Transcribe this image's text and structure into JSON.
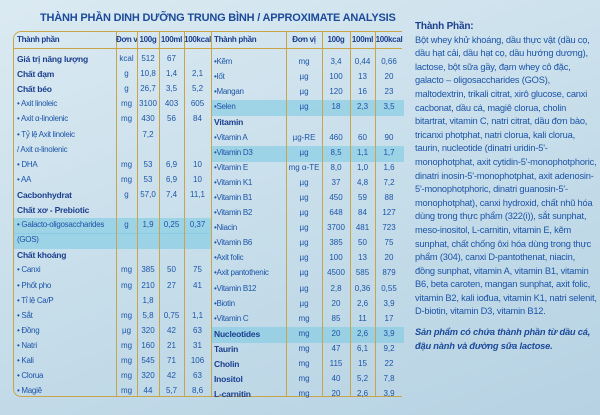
{
  "title": "THÀNH PHẦN DINH DƯỠNG TRUNG BÌNH / APPROXIMATE ANALYSIS",
  "headers": [
    "Thành phần",
    "Đơn vị",
    "100g",
    "100ml",
    "100kcal"
  ],
  "left_rows": [
    {
      "name": "Giá trị năng lượng",
      "bold": true,
      "unit": "kcal",
      "g": "512",
      "ml": "67",
      "kcal": ""
    },
    {
      "name": "Chất đạm",
      "bold": true,
      "unit": "g",
      "g": "10,8",
      "ml": "1,4",
      "kcal": "2,1"
    },
    {
      "name": "Chất béo",
      "bold": true,
      "unit": "g",
      "g": "26,7",
      "ml": "3,5",
      "kcal": "5,2"
    },
    {
      "name": "• Axit linoleic",
      "unit": "mg",
      "g": "3100",
      "ml": "403",
      "kcal": "605"
    },
    {
      "name": "• Axit α-linolenic",
      "unit": "mg",
      "g": "430",
      "ml": "56",
      "kcal": "84"
    },
    {
      "name": "• Tỷ lệ Axit linoleic",
      "unit": "",
      "g": "7,2",
      "ml": "",
      "kcal": ""
    },
    {
      "name": "  / Axit α-linolenic",
      "unit": "",
      "g": "",
      "ml": "",
      "kcal": ""
    },
    {
      "name": "• DHA",
      "unit": "mg",
      "g": "53",
      "ml": "6,9",
      "kcal": "10"
    },
    {
      "name": "• AA",
      "unit": "mg",
      "g": "53",
      "ml": "6,9",
      "kcal": "10"
    },
    {
      "name": "Cacbonhydrat",
      "bold": true,
      "unit": "g",
      "g": "57,0",
      "ml": "7,4",
      "kcal": "11,1"
    },
    {
      "name": "Chất xơ - Prebiotic",
      "bold": true,
      "unit": "",
      "g": "",
      "ml": "",
      "kcal": ""
    },
    {
      "name": "• Galacto-oligosaccharides",
      "highlight": true,
      "unit": "g",
      "g": "1,9",
      "ml": "0,25",
      "kcal": "0,37"
    },
    {
      "name": "(GOS)",
      "highlight": true,
      "unit": "",
      "g": "",
      "ml": "",
      "kcal": ""
    },
    {
      "name": "Chất khoáng",
      "bold": true,
      "unit": "",
      "g": "",
      "ml": "",
      "kcal": ""
    },
    {
      "name": "• Canxi",
      "unit": "mg",
      "g": "385",
      "ml": "50",
      "kcal": "75"
    },
    {
      "name": "• Phốt pho",
      "unit": "mg",
      "g": "210",
      "ml": "27",
      "kcal": "41"
    },
    {
      "name": "• Tỉ lệ Ca/P",
      "unit": "",
      "g": "1,8",
      "ml": "",
      "kcal": ""
    },
    {
      "name": "• Sắt",
      "unit": "mg",
      "g": "5,8",
      "ml": "0,75",
      "kcal": "1,1"
    },
    {
      "name": "• Đồng",
      "unit": "µg",
      "g": "320",
      "ml": "42",
      "kcal": "63"
    },
    {
      "name": "• Natri",
      "unit": "mg",
      "g": "160",
      "ml": "21",
      "kcal": "31"
    },
    {
      "name": "• Kali",
      "unit": "mg",
      "g": "545",
      "ml": "71",
      "kcal": "106"
    },
    {
      "name": "• Clorua",
      "unit": "mg",
      "g": "320",
      "ml": "42",
      "kcal": "63"
    },
    {
      "name": "• Magiê",
      "unit": "mg",
      "g": "44",
      "ml": "5,7",
      "kcal": "8,6"
    }
  ],
  "right_rows": [
    {
      "name": "•Kẽm",
      "unit": "mg",
      "g": "3,4",
      "ml": "0,44",
      "kcal": "0,66"
    },
    {
      "name": "•Iốt",
      "unit": "µg",
      "g": "100",
      "ml": "13",
      "kcal": "20"
    },
    {
      "name": "•Mangan",
      "unit": "µg",
      "g": "120",
      "ml": "16",
      "kcal": "23"
    },
    {
      "name": "•Selen",
      "highlight": true,
      "unit": "µg",
      "g": "18",
      "ml": "2,3",
      "kcal": "3,5"
    },
    {
      "name": "Vitamin",
      "bold": true,
      "unit": "",
      "g": "",
      "ml": "",
      "kcal": ""
    },
    {
      "name": "•Vitamin A",
      "unit": "µg-RE",
      "g": "460",
      "ml": "60",
      "kcal": "90"
    },
    {
      "name": "•Vitamin D3",
      "highlight": true,
      "unit": "µg",
      "g": "8,5",
      "ml": "1,1",
      "kcal": "1,7"
    },
    {
      "name": "•Vitamin E",
      "unit": "mg α-TE",
      "g": "8,0",
      "ml": "1,0",
      "kcal": "1,6"
    },
    {
      "name": "•Vitamin K1",
      "unit": "µg",
      "g": "37",
      "ml": "4,8",
      "kcal": "7,2"
    },
    {
      "name": "•Vitamin B1",
      "unit": "µg",
      "g": "450",
      "ml": "59",
      "kcal": "88"
    },
    {
      "name": "•Vitamin B2",
      "unit": "µg",
      "g": "648",
      "ml": "84",
      "kcal": "127"
    },
    {
      "name": "•Niacin",
      "unit": "µg",
      "g": "3700",
      "ml": "481",
      "kcal": "723"
    },
    {
      "name": "•Vitamin B6",
      "unit": "µg",
      "g": "385",
      "ml": "50",
      "kcal": "75"
    },
    {
      "name": "•Axit folic",
      "unit": "µg",
      "g": "100",
      "ml": "13",
      "kcal": "20"
    },
    {
      "name": "•Axit pantothenic",
      "unit": "µg",
      "g": "4500",
      "ml": "585",
      "kcal": "879"
    },
    {
      "name": "•Vitamin B12",
      "unit": "µg",
      "g": "2,8",
      "ml": "0,36",
      "kcal": "0,55"
    },
    {
      "name": "•Biotin",
      "unit": "µg",
      "g": "20",
      "ml": "2,6",
      "kcal": "3,9"
    },
    {
      "name": "•Vitamin C",
      "unit": "mg",
      "g": "85",
      "ml": "11",
      "kcal": "17"
    },
    {
      "name": "Nucleotides",
      "bold": true,
      "highlight": true,
      "unit": "mg",
      "g": "20",
      "ml": "2,6",
      "kcal": "3,9"
    },
    {
      "name": "Taurin",
      "bold": true,
      "unit": "mg",
      "g": "47",
      "ml": "6,1",
      "kcal": "9,2"
    },
    {
      "name": "Cholin",
      "bold": true,
      "unit": "mg",
      "g": "115",
      "ml": "15",
      "kcal": "22"
    },
    {
      "name": "Inositol",
      "bold": true,
      "unit": "mg",
      "g": "40",
      "ml": "5,2",
      "kcal": "7,8"
    },
    {
      "name": "L-carnitin",
      "bold": true,
      "unit": "mg",
      "g": "20",
      "ml": "2,6",
      "kcal": "3,9"
    }
  ],
  "ingredients": {
    "title": "Thành Phần:",
    "text": "Bột whey khử khoáng, dầu thực vật (dầu cọ, dầu hạt cải, dầu hạt cọ, dầu hướng dương), lactose, bột sữa gầy, đạm whey cô đặc, galacto – oligosaccharides (GOS), maltodextrin, trikali citrat, xirô glucose, canxi cacbonat, dầu cá, magiê clorua, cholin bitartrat, vitamin C, natri citrat, dầu đơn bào, tricanxi photphat, natri clorua, kali clorua, taurin, nucleotide (dinatri uridin-5'-monophotphat, axit cytidin-5'-monophotphoric, dinatri inosin-5'-monophotphat, axit adenosin-5'-monophotphoric, dinatri guanosin-5'-monophotphat), canxi hydroxid, chất nhũ hóa dùng trong thực phẩm (322(i)), sắt sunphat, meso-inositol, L-carnitin, vitamin E, kẽm sunphat, chất chống ôxi hóa dùng trong thực phẩm (304), canxi D-pantothenat, niacin, đồng sunphat, vitamin A, vitamin B1, vitamin B6, beta caroten, mangan sunphat, axit folic, vitamin B2, kali iođua, vitamin K1, natri selenit, D-biotin, vitamin D3, vitamin B12.",
    "note": "Sản phẩm có chứa thành phần từ dầu cá, đậu nành và đường sữa lactose."
  }
}
